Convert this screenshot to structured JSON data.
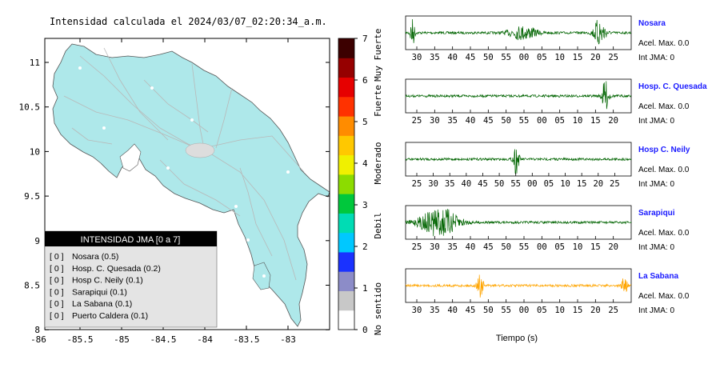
{
  "title": "Intensidad calculada el 2024/03/07_02:20:34_a.m.",
  "map": {
    "lon_ticks": [
      "-86",
      "-85.5",
      "-85",
      "-84.5",
      "-84",
      "-83.5",
      "-83"
    ],
    "lat_ticks": [
      "11",
      "10.5",
      "10",
      "9.5",
      "9",
      "8.5",
      "8"
    ],
    "legend_title": "INTENSIDAD JMA [0 a 7]",
    "legend_items": [
      {
        "level": "[ 0 ]",
        "name": "Nosara (0.5)"
      },
      {
        "level": "[ 0 ]",
        "name": "Hosp. C. Quesada (0.2)"
      },
      {
        "level": "[ 0 ]",
        "name": "Hosp C. Neily (0.1)"
      },
      {
        "level": "[ 0 ]",
        "name": "Sarapiqui (0.1)"
      },
      {
        "level": "[ 0 ]",
        "name": "La Sabana (0.1)"
      },
      {
        "level": "[ 0 ]",
        "name": "Puerto Caldera (0.1)"
      }
    ],
    "land_color": "#aee8ea",
    "road_color": "#b8b8b8"
  },
  "colorbar": {
    "ticks": [
      "0",
      "1",
      "2",
      "3",
      "4",
      "5",
      "6",
      "7"
    ],
    "labels": [
      {
        "text": "No sentido",
        "at": 0.5
      },
      {
        "text": "Debil",
        "at": 2.5
      },
      {
        "text": "Moderado",
        "at": 4.0
      },
      {
        "text": "Fuerte",
        "at": 5.5
      },
      {
        "text": "Muy Fuerte",
        "at": 6.6
      }
    ],
    "colors": [
      "#ffffff",
      "#c8c8c8",
      "#8c8cc8",
      "#1a32ff",
      "#00c8ff",
      "#00dcb4",
      "#00c83c",
      "#8cdc00",
      "#f0f000",
      "#ffc800",
      "#ff8c00",
      "#ff3200",
      "#e60000",
      "#960000",
      "#3c0000"
    ]
  },
  "chart_data": [
    {
      "type": "line",
      "station": "Nosara",
      "accel_label": "Acel. Max. 0.0",
      "jma_label": "Int JMA: 0",
      "x_ticks": [
        "30",
        "35",
        "40",
        "45",
        "50",
        "55",
        "00",
        "05",
        "10",
        "15",
        "20",
        "25"
      ],
      "color": "#006400",
      "bursts": [
        {
          "at": 0.03,
          "amp": 1.0,
          "w": 0.01
        },
        {
          "at": 0.52,
          "amp": 0.45,
          "w": 0.06
        },
        {
          "at": 0.86,
          "amp": 1.0,
          "w": 0.025
        }
      ]
    },
    {
      "type": "line",
      "station": "Hosp. C. Quesada",
      "accel_label": "Acel. Max. 0.0",
      "jma_label": "Int JMA: 0",
      "x_ticks": [
        "25",
        "30",
        "35",
        "40",
        "45",
        "50",
        "55",
        "00",
        "05",
        "10",
        "15",
        "20"
      ],
      "color": "#006400",
      "bursts": [
        {
          "at": 0.885,
          "amp": 1.0,
          "w": 0.015
        }
      ]
    },
    {
      "type": "line",
      "station": "Hosp C. Neily",
      "accel_label": "Acel. Max. 0.0",
      "jma_label": "Int JMA: 0",
      "x_ticks": [
        "25",
        "30",
        "35",
        "40",
        "45",
        "50",
        "55",
        "00",
        "05",
        "10",
        "15",
        "20",
        "25"
      ],
      "color": "#006400",
      "bursts": [
        {
          "at": 0.49,
          "amp": 1.0,
          "w": 0.012
        }
      ]
    },
    {
      "type": "line",
      "station": "Sarapiqui",
      "accel_label": "Acel. Max. 0.0",
      "jma_label": "Int JMA: 0",
      "x_ticks": [
        "25",
        "30",
        "35",
        "40",
        "45",
        "50",
        "55",
        "00",
        "05",
        "10",
        "15",
        "20"
      ],
      "color": "#006400",
      "bursts": [
        {
          "at": 0.15,
          "amp": 1.0,
          "w": 0.08
        }
      ]
    },
    {
      "type": "line",
      "station": "La Sabana",
      "accel_label": "Acel. Max. 0.0",
      "jma_label": "Int JMA: 0",
      "x_ticks": [
        "30",
        "35",
        "40",
        "45",
        "50",
        "55",
        "00",
        "05",
        "10",
        "15",
        "20",
        "25"
      ],
      "color": "#ffa500",
      "bursts": [
        {
          "at": 0.33,
          "amp": 1.0,
          "w": 0.012
        },
        {
          "at": 0.97,
          "amp": 0.8,
          "w": 0.01
        }
      ]
    }
  ],
  "xlabel": "Tiempo (s)"
}
